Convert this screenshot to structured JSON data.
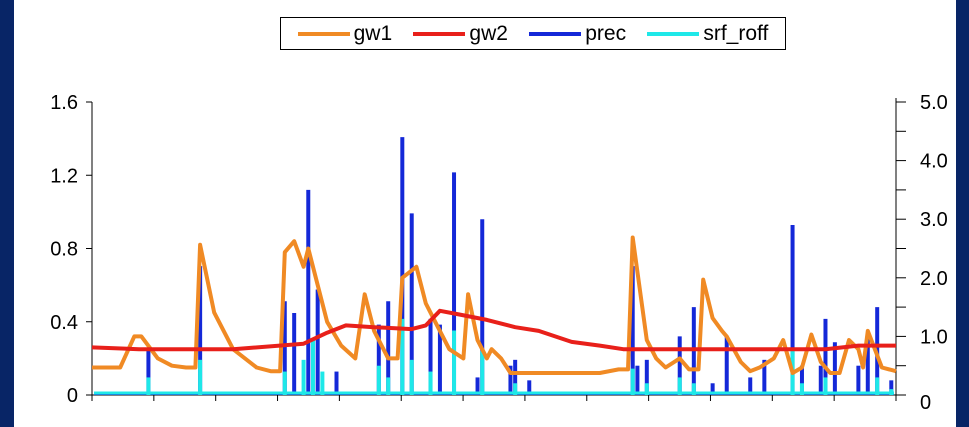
{
  "chart_data": {
    "type": "line",
    "title": "",
    "xlabel": "",
    "ylabel": "",
    "ylim_left": [
      0,
      1.6
    ],
    "ylim_right": [
      0,
      5.0
    ],
    "left_ticks": [
      "0",
      "0.4",
      "0.8",
      "1.2",
      "1.6"
    ],
    "right_ticks": [
      "0",
      "1.0",
      "2.0",
      "3.0",
      "4.0",
      "5.0"
    ],
    "legend_placement": "top-center",
    "x_count": 13,
    "series": [
      {
        "name": "gw1",
        "axis": "left",
        "color": "#f08a24",
        "points": [
          [
            0,
            0.15
          ],
          [
            0.6,
            0.15
          ],
          [
            0.9,
            0.32
          ],
          [
            1.05,
            0.32
          ],
          [
            1.4,
            0.2
          ],
          [
            1.7,
            0.16
          ],
          [
            2,
            0.15
          ],
          [
            2.2,
            0.15
          ],
          [
            2.3,
            0.82
          ],
          [
            2.6,
            0.45
          ],
          [
            3,
            0.25
          ],
          [
            3.5,
            0.15
          ],
          [
            3.8,
            0.13
          ],
          [
            4,
            0.13
          ],
          [
            4.1,
            0.78
          ],
          [
            4.3,
            0.84
          ],
          [
            4.5,
            0.7
          ],
          [
            4.6,
            0.8
          ],
          [
            4.8,
            0.6
          ],
          [
            5,
            0.4
          ],
          [
            5.3,
            0.27
          ],
          [
            5.6,
            0.2
          ],
          [
            5.8,
            0.55
          ],
          [
            6,
            0.35
          ],
          [
            6.3,
            0.2
          ],
          [
            6.5,
            0.2
          ],
          [
            6.6,
            0.64
          ],
          [
            6.9,
            0.7
          ],
          [
            7.1,
            0.5
          ],
          [
            7.3,
            0.4
          ],
          [
            7.6,
            0.25
          ],
          [
            7.9,
            0.2
          ],
          [
            8,
            0.55
          ],
          [
            8.2,
            0.3
          ],
          [
            8.4,
            0.2
          ],
          [
            8.5,
            0.25
          ],
          [
            8.7,
            0.2
          ],
          [
            8.9,
            0.12
          ],
          [
            9.3,
            0.12
          ],
          [
            10,
            0.12
          ],
          [
            10.8,
            0.12
          ],
          [
            11.2,
            0.14
          ],
          [
            11.4,
            0.14
          ],
          [
            11.5,
            0.86
          ],
          [
            11.8,
            0.3
          ],
          [
            12,
            0.2
          ],
          [
            12.2,
            0.15
          ],
          [
            12.5,
            0.2
          ],
          [
            12.7,
            0.14
          ],
          [
            12.9,
            0.14
          ],
          [
            13,
            0.63
          ],
          [
            13.2,
            0.42
          ],
          [
            13.4,
            0.35
          ],
          [
            13.5,
            0.32
          ],
          [
            13.8,
            0.18
          ],
          [
            14,
            0.13
          ],
          [
            14.2,
            0.15
          ],
          [
            14.5,
            0.2
          ],
          [
            14.7,
            0.3
          ],
          [
            14.9,
            0.12
          ],
          [
            15.1,
            0.15
          ],
          [
            15.3,
            0.33
          ],
          [
            15.5,
            0.18
          ],
          [
            15.7,
            0.12
          ],
          [
            15.9,
            0.12
          ],
          [
            16.1,
            0.3
          ],
          [
            16.3,
            0.25
          ],
          [
            16.4,
            0.15
          ],
          [
            16.5,
            0.35
          ],
          [
            16.8,
            0.15
          ],
          [
            17.1,
            0.13
          ]
        ]
      },
      {
        "name": "gw2",
        "axis": "left",
        "color": "#e8201a",
        "points": [
          [
            0,
            0.26
          ],
          [
            1,
            0.25
          ],
          [
            3,
            0.25
          ],
          [
            4.5,
            0.28
          ],
          [
            5,
            0.34
          ],
          [
            5.4,
            0.38
          ],
          [
            6,
            0.37
          ],
          [
            6.8,
            0.36
          ],
          [
            7.1,
            0.38
          ],
          [
            7.4,
            0.46
          ],
          [
            7.8,
            0.44
          ],
          [
            8.4,
            0.41
          ],
          [
            9,
            0.37
          ],
          [
            9.5,
            0.35
          ],
          [
            10.2,
            0.29
          ],
          [
            10.8,
            0.27
          ],
          [
            11.3,
            0.25
          ],
          [
            12,
            0.25
          ],
          [
            13,
            0.25
          ],
          [
            13.7,
            0.25
          ],
          [
            14.3,
            0.25
          ],
          [
            15,
            0.25
          ],
          [
            15.6,
            0.25
          ],
          [
            16.3,
            0.27
          ],
          [
            17.1,
            0.27
          ]
        ]
      },
      {
        "name": "prec",
        "axis": "right",
        "color": "#1428d8",
        "bars": [
          [
            1.2,
            0.8
          ],
          [
            2.3,
            2.2
          ],
          [
            4.1,
            1.6
          ],
          [
            4.3,
            1.4
          ],
          [
            4.6,
            3.5
          ],
          [
            4.8,
            1.8
          ],
          [
            5.2,
            0.4
          ],
          [
            6.1,
            1.2
          ],
          [
            6.3,
            1.6
          ],
          [
            6.6,
            4.4
          ],
          [
            6.8,
            3.1
          ],
          [
            7.2,
            1.3
          ],
          [
            7.4,
            1.2
          ],
          [
            7.7,
            3.8
          ],
          [
            8.2,
            0.3
          ],
          [
            8.3,
            3.0
          ],
          [
            8.9,
            0.5
          ],
          [
            9.0,
            0.6
          ],
          [
            9.3,
            0.25
          ],
          [
            11.5,
            2.2
          ],
          [
            11.6,
            0.5
          ],
          [
            11.8,
            0.6
          ],
          [
            12.5,
            1.0
          ],
          [
            12.8,
            1.5
          ],
          [
            13.2,
            0.2
          ],
          [
            13.5,
            1.0
          ],
          [
            14.0,
            0.3
          ],
          [
            14.3,
            0.6
          ],
          [
            14.9,
            2.9
          ],
          [
            15.1,
            0.5
          ],
          [
            15.5,
            0.5
          ],
          [
            15.6,
            1.3
          ],
          [
            15.8,
            0.9
          ],
          [
            16.3,
            0.5
          ],
          [
            16.5,
            1.0
          ],
          [
            16.7,
            1.5
          ],
          [
            17.0,
            0.25
          ]
        ]
      },
      {
        "name": "srf_roff",
        "axis": "right",
        "color": "#1ee8e8",
        "bars": [
          [
            1.2,
            0.3
          ],
          [
            2.3,
            0.6
          ],
          [
            4.1,
            0.4
          ],
          [
            4.5,
            0.6
          ],
          [
            4.7,
            0.95
          ],
          [
            4.9,
            0.4
          ],
          [
            6.1,
            0.5
          ],
          [
            6.3,
            0.3
          ],
          [
            6.6,
            1.3
          ],
          [
            6.8,
            0.6
          ],
          [
            7.2,
            0.4
          ],
          [
            7.7,
            1.1
          ],
          [
            8.3,
            0.75
          ],
          [
            9.0,
            0.2
          ],
          [
            11.5,
            0.45
          ],
          [
            11.8,
            0.2
          ],
          [
            12.5,
            0.3
          ],
          [
            12.8,
            0.2
          ],
          [
            14.9,
            0.8
          ],
          [
            15.1,
            0.2
          ],
          [
            15.6,
            0.3
          ],
          [
            16.7,
            0.3
          ],
          [
            17.0,
            0.1
          ]
        ]
      }
    ]
  }
}
